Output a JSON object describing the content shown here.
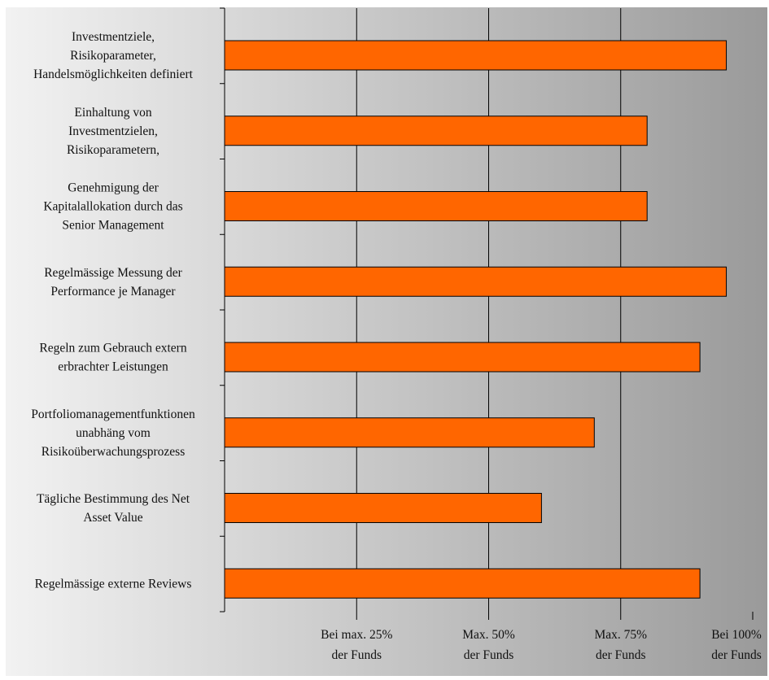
{
  "chart_data": {
    "type": "bar",
    "orientation": "horizontal",
    "categories": [
      [
        "Investmentziele,",
        "Risikoparameter,",
        "Handelsmöglichkeiten definiert"
      ],
      [
        "Einhaltung von",
        "Investmentzielen,",
        "Risikoparametern,"
      ],
      [
        "Genehmigung der",
        "Kapitalallokation durch das",
        "Senior Management"
      ],
      [
        "Regelmässige Messung der",
        "Performance je Manager"
      ],
      [
        "Regeln zum Gebrauch extern",
        "erbrachter Leistungen"
      ],
      [
        "Portfoliomanagementfunktionen",
        "unabhäng vom",
        "Risikoüberwachungsprozess"
      ],
      [
        "Tägliche Bestimmung des Net",
        "Asset Value"
      ],
      [
        "Regelmässige externe Reviews"
      ]
    ],
    "values": [
      95,
      80,
      80,
      95,
      90,
      70,
      60,
      90
    ],
    "xlim": [
      0,
      100
    ],
    "xticks": [
      25,
      50,
      75,
      100
    ],
    "xtick_labels": [
      [
        "Bei max. 25%",
        "der Funds"
      ],
      [
        "Max. 50%",
        "der Funds"
      ],
      [
        "Max. 75%",
        "der Funds"
      ],
      [
        "Bei 100%",
        "der Funds"
      ]
    ],
    "grid": true,
    "bar_color": "#ff6600",
    "bar_stroke": "#000000",
    "background_gradient": [
      "#f2f2f2",
      "#9a9a9a"
    ]
  }
}
